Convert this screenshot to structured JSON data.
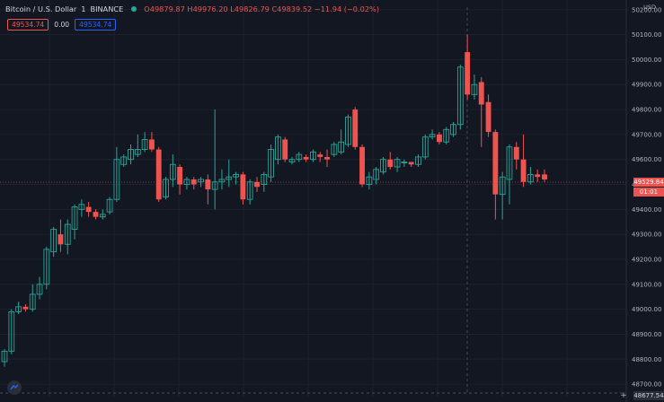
{
  "legend": {
    "symbol": "Bitcoin / U.S. Dollar",
    "interval": "1",
    "exchange": "BINANCE",
    "ohlc": "O49879.87 H49976.20 L49826.79 C49839.52 −11.94 (−0.02%)"
  },
  "trade": {
    "sell": "49534.74",
    "spread": "0.00",
    "buy": "49534.74"
  },
  "price_scale": {
    "currency": "USD",
    "ticks": [
      "50200.00",
      "50100.00",
      "50000.00",
      "49900.00",
      "49800.00",
      "49700.00",
      "49600.00",
      "49500.00",
      "49400.00",
      "49300.00",
      "49200.00",
      "49100.00",
      "49000.00",
      "48900.00",
      "48800.00",
      "48700.00"
    ],
    "current_price": "49529.84",
    "countdown": "01:01",
    "crosshair_price": "48677.54"
  },
  "colors": {
    "up": "#26a69a",
    "down": "#ef5350",
    "background": "#131722",
    "grid": "#1e222d"
  },
  "chart_data": {
    "type": "candlestick",
    "y_range": [
      48650,
      50210
    ],
    "candles": [
      [
        48790,
        48832,
        48770,
        48840
      ],
      [
        48832,
        48990,
        48820,
        49000
      ],
      [
        48990,
        49010,
        48980,
        49030
      ],
      [
        49010,
        49000,
        48990,
        49020
      ],
      [
        49000,
        49060,
        48990,
        49100
      ],
      [
        49060,
        49100,
        49040,
        49130
      ],
      [
        49100,
        49240,
        49080,
        49250
      ],
      [
        49230,
        49320,
        49210,
        49330
      ],
      [
        49300,
        49260,
        49230,
        49360
      ],
      [
        49260,
        49340,
        49220,
        49360
      ],
      [
        49320,
        49410,
        49280,
        49420
      ],
      [
        49400,
        49420,
        49370,
        49440
      ],
      [
        49410,
        49390,
        49370,
        49430
      ],
      [
        49390,
        49370,
        49360,
        49400
      ],
      [
        49370,
        49380,
        49360,
        49400
      ],
      [
        49390,
        49440,
        49380,
        49450
      ],
      [
        49440,
        49600,
        49430,
        49650
      ],
      [
        49580,
        49610,
        49570,
        49620
      ],
      [
        49600,
        49640,
        49580,
        49660
      ],
      [
        49620,
        49640,
        49610,
        49700
      ],
      [
        49640,
        49680,
        49630,
        49710
      ],
      [
        49680,
        49640,
        49630,
        49710
      ],
      [
        49640,
        49440,
        49430,
        49650
      ],
      [
        49450,
        49520,
        49440,
        49530
      ],
      [
        49520,
        49580,
        49490,
        49620
      ],
      [
        49570,
        49500,
        49460,
        49580
      ],
      [
        49500,
        49520,
        49480,
        49530
      ],
      [
        49520,
        49500,
        49480,
        49530
      ],
      [
        49510,
        49520,
        49490,
        49530
      ],
      [
        49520,
        49480,
        49420,
        49540
      ],
      [
        49480,
        49510,
        49400,
        49800
      ],
      [
        49510,
        49520,
        49480,
        49560
      ],
      [
        49520,
        49530,
        49490,
        49600
      ],
      [
        49530,
        49540,
        49500,
        49550
      ],
      [
        49540,
        49440,
        49420,
        49550
      ],
      [
        49440,
        49510,
        49420,
        49520
      ],
      [
        49510,
        49490,
        49470,
        49530
      ],
      [
        49500,
        49540,
        49470,
        49550
      ],
      [
        49530,
        49640,
        49510,
        49660
      ],
      [
        49600,
        49690,
        49580,
        49700
      ],
      [
        49680,
        49600,
        49590,
        49690
      ],
      [
        49590,
        49600,
        49580,
        49610
      ],
      [
        49600,
        49620,
        49590,
        49630
      ],
      [
        49610,
        49600,
        49590,
        49620
      ],
      [
        49600,
        49630,
        49590,
        49640
      ],
      [
        49620,
        49610,
        49590,
        49630
      ],
      [
        49610,
        49600,
        49570,
        49640
      ],
      [
        49620,
        49660,
        49610,
        49670
      ],
      [
        49630,
        49670,
        49620,
        49720
      ],
      [
        49660,
        49770,
        49650,
        49780
      ],
      [
        49800,
        49650,
        49640,
        49810
      ],
      [
        49650,
        49500,
        49490,
        49660
      ],
      [
        49500,
        49530,
        49480,
        49550
      ],
      [
        49520,
        49560,
        49500,
        49570
      ],
      [
        49550,
        49600,
        49540,
        49610
      ],
      [
        49600,
        49570,
        49560,
        49630
      ],
      [
        49570,
        49600,
        49550,
        49610
      ],
      [
        49590,
        49590,
        49570,
        49600
      ],
      [
        49590,
        49580,
        49570,
        49590
      ],
      [
        49580,
        49610,
        49570,
        49620
      ],
      [
        49610,
        49690,
        49600,
        49700
      ],
      [
        49690,
        49700,
        49680,
        49720
      ],
      [
        49700,
        49670,
        49660,
        49710
      ],
      [
        49670,
        49720,
        49660,
        49730
      ],
      [
        49700,
        49740,
        49690,
        49750
      ],
      [
        49740,
        49970,
        49720,
        49980
      ],
      [
        50030,
        49860,
        49840,
        50100
      ],
      [
        49860,
        49900,
        49840,
        49940
      ],
      [
        49910,
        49820,
        49650,
        49930
      ],
      [
        49830,
        49710,
        49690,
        49860
      ],
      [
        49710,
        49460,
        49360,
        49720
      ],
      [
        49460,
        49530,
        49360,
        49550
      ],
      [
        49520,
        49650,
        49420,
        49660
      ],
      [
        49650,
        49600,
        49560,
        49670
      ],
      [
        49600,
        49510,
        49490,
        49700
      ],
      [
        49510,
        49540,
        49500,
        49570
      ],
      [
        49540,
        49530,
        49510,
        49560
      ],
      [
        49540,
        49520,
        49510,
        49560
      ]
    ]
  }
}
